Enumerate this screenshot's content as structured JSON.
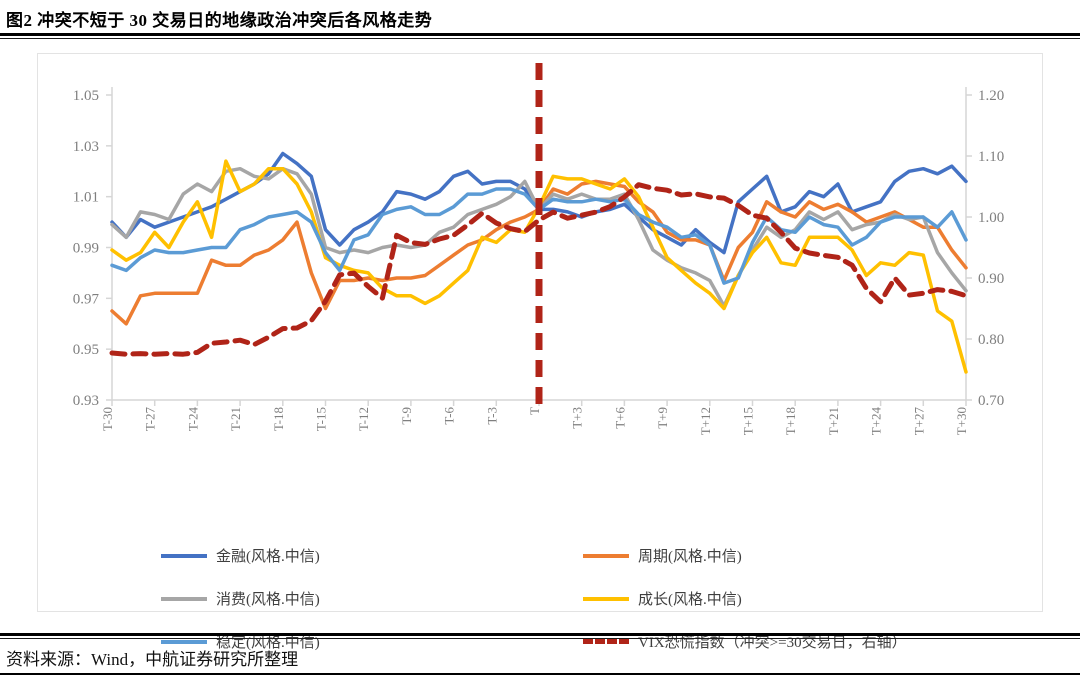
{
  "figure": {
    "title": "图2  冲突不短于 30 交易日的地缘政治冲突后各风格走势",
    "source": "资料来源：Wind，中航证券研究所整理"
  },
  "chart_data": {
    "type": "line",
    "x_start": -30,
    "x_end": 30,
    "x_step": 1,
    "x_tick_labels": [
      "T-30",
      "T-27",
      "T-24",
      "T-21",
      "T-18",
      "T-15",
      "T-12",
      "T-9",
      "T-6",
      "T-3",
      "T",
      "T+3",
      "T+6",
      "T+9",
      "T+12",
      "T+15",
      "T+18",
      "T+21",
      "T+24",
      "T+27",
      "T+30"
    ],
    "left_axis": {
      "min": 0.93,
      "max": 1.05,
      "ticks": [
        "1.05",
        "1.03",
        "1.01",
        "0.99",
        "0.97",
        "0.95",
        "0.93"
      ]
    },
    "right_axis": {
      "min": 0.7,
      "max": 1.2,
      "ticks": [
        "1.20",
        "1.10",
        "1.00",
        "0.90",
        "0.80",
        "0.70"
      ]
    },
    "grid": false,
    "legend_position": "bottom",
    "event_line": {
      "x": 0,
      "color": "#b02418",
      "style": "dashed"
    },
    "series": [
      {
        "name": "金融(风格.中信)",
        "color": "#4472c4",
        "axis": "left",
        "dash": false,
        "values": [
          1.0,
          0.994,
          1.001,
          0.998,
          1.0,
          1.002,
          1.004,
          1.006,
          1.009,
          1.012,
          1.015,
          1.019,
          1.027,
          1.023,
          1.018,
          0.997,
          0.991,
          0.997,
          1.0,
          1.004,
          1.012,
          1.011,
          1.009,
          1.012,
          1.018,
          1.02,
          1.015,
          1.016,
          1.016,
          1.013,
          1.005,
          1.005,
          1.004,
          1.002,
          1.004,
          1.005,
          1.007,
          1.002,
          0.997,
          0.994,
          0.991,
          0.997,
          0.992,
          0.988,
          1.008,
          1.013,
          1.018,
          1.004,
          1.006,
          1.012,
          1.01,
          1.015,
          1.004,
          1.006,
          1.008,
          1.016,
          1.02,
          1.021,
          1.019,
          1.022,
          1.016
        ]
      },
      {
        "name": "周期(风格.中信)",
        "color": "#ed7d31",
        "axis": "left",
        "dash": false,
        "values": [
          0.965,
          0.96,
          0.971,
          0.972,
          0.972,
          0.972,
          0.972,
          0.985,
          0.983,
          0.983,
          0.987,
          0.989,
          0.993,
          1.0,
          0.98,
          0.966,
          0.977,
          0.977,
          0.978,
          0.977,
          0.978,
          0.978,
          0.979,
          0.983,
          0.987,
          0.991,
          0.993,
          0.997,
          1.0,
          1.002,
          1.005,
          1.013,
          1.011,
          1.015,
          1.016,
          1.015,
          1.014,
          1.008,
          1.004,
          0.996,
          0.993,
          0.993,
          0.991,
          0.977,
          0.99,
          0.996,
          1.008,
          1.004,
          1.002,
          1.008,
          1.005,
          1.007,
          1.004,
          1.0,
          1.002,
          1.004,
          1.001,
          0.998,
          0.998,
          0.989,
          0.982
        ]
      },
      {
        "name": "消费(风格.中信)",
        "color": "#a6a6a6",
        "axis": "left",
        "dash": false,
        "values": [
          0.999,
          0.994,
          1.004,
          1.003,
          1.001,
          1.011,
          1.015,
          1.012,
          1.02,
          1.021,
          1.018,
          1.017,
          1.021,
          1.019,
          1.011,
          0.99,
          0.988,
          0.989,
          0.988,
          0.99,
          0.991,
          0.99,
          0.991,
          0.996,
          0.998,
          1.003,
          1.005,
          1.007,
          1.01,
          1.016,
          1.005,
          1.011,
          1.009,
          1.011,
          1.009,
          1.009,
          1.011,
          1.001,
          0.989,
          0.985,
          0.982,
          0.98,
          0.977,
          0.967,
          0.979,
          0.989,
          0.998,
          0.994,
          0.997,
          1.004,
          1.001,
          1.004,
          0.997,
          0.999,
          1.0,
          1.003,
          1.001,
          1.002,
          0.988,
          0.98,
          0.973
        ]
      },
      {
        "name": "成长(风格.中信)",
        "color": "#ffc000",
        "axis": "left",
        "dash": false,
        "values": [
          0.989,
          0.985,
          0.988,
          0.996,
          0.99,
          1.0,
          1.008,
          0.994,
          1.024,
          1.012,
          1.015,
          1.021,
          1.021,
          1.015,
          1.004,
          0.986,
          0.983,
          0.981,
          0.98,
          0.974,
          0.971,
          0.971,
          0.968,
          0.971,
          0.976,
          0.981,
          0.994,
          0.992,
          0.997,
          0.996,
          1.006,
          1.018,
          1.017,
          1.017,
          1.015,
          1.013,
          1.017,
          1.01,
          0.998,
          0.986,
          0.981,
          0.976,
          0.972,
          0.966,
          0.979,
          0.988,
          0.994,
          0.984,
          0.983,
          0.994,
          0.994,
          0.994,
          0.989,
          0.979,
          0.984,
          0.983,
          0.988,
          0.987,
          0.965,
          0.961,
          0.941
        ]
      },
      {
        "name": "稳定(风格.中信)",
        "color": "#5b9bd5",
        "axis": "left",
        "dash": false,
        "values": [
          0.983,
          0.981,
          0.986,
          0.989,
          0.988,
          0.988,
          0.989,
          0.99,
          0.99,
          0.997,
          0.999,
          1.002,
          1.003,
          1.004,
          1.0,
          0.988,
          0.981,
          0.993,
          0.995,
          1.003,
          1.005,
          1.006,
          1.003,
          1.003,
          1.006,
          1.011,
          1.011,
          1.013,
          1.013,
          1.011,
          1.005,
          1.009,
          1.008,
          1.008,
          1.009,
          1.008,
          1.009,
          1.003,
          1.0,
          0.998,
          0.994,
          0.995,
          0.991,
          0.976,
          0.978,
          0.992,
          1.002,
          0.997,
          0.996,
          1.002,
          0.999,
          0.998,
          0.991,
          0.994,
          1.0,
          1.002,
          1.002,
          1.002,
          0.998,
          1.004,
          0.993
        ]
      },
      {
        "name": "VIX恐慌指数（冲突>=30交易日，右轴）",
        "color": "#b02418",
        "axis": "right",
        "dash": true,
        "values": [
          0.777,
          0.775,
          0.776,
          0.775,
          0.776,
          0.775,
          0.778,
          0.793,
          0.795,
          0.798,
          0.791,
          0.803,
          0.817,
          0.818,
          0.83,
          0.862,
          0.905,
          0.908,
          0.886,
          0.867,
          0.97,
          0.958,
          0.955,
          0.964,
          0.97,
          0.987,
          1.006,
          0.99,
          0.981,
          0.976,
          0.995,
          1.008,
          0.998,
          1.003,
          1.008,
          1.017,
          1.033,
          1.053,
          1.047,
          1.044,
          1.036,
          1.038,
          1.033,
          1.031,
          1.019,
          1.003,
          0.998,
          0.975,
          0.949,
          0.941,
          0.937,
          0.934,
          0.921,
          0.883,
          0.861,
          0.9,
          0.872,
          0.875,
          0.881,
          0.878,
          0.871
        ]
      }
    ]
  }
}
